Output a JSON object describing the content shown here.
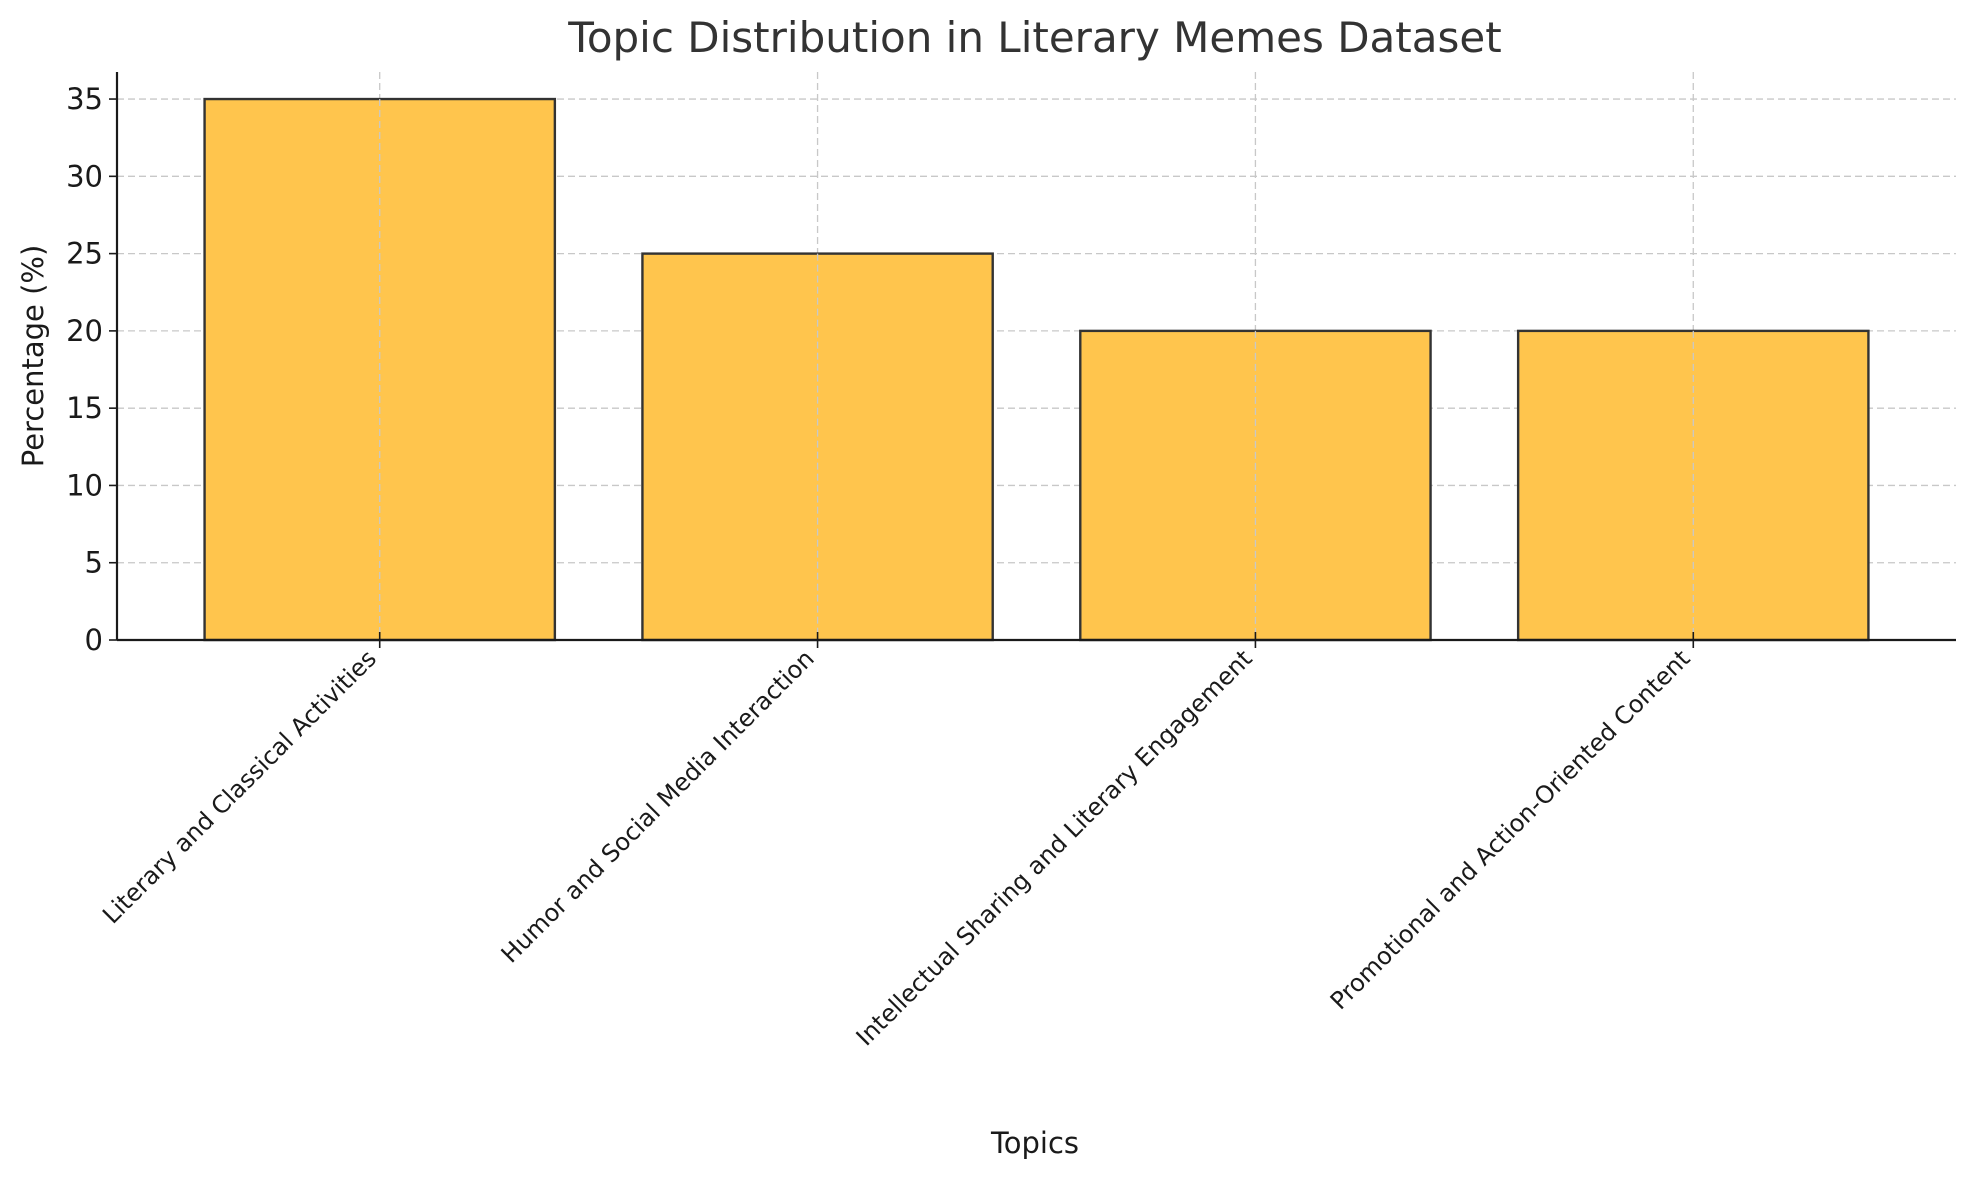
{
  "chart_data": {
    "type": "bar",
    "title": "Topic Distribution in Literary Memes Dataset",
    "xlabel": "Topics",
    "ylabel": "Percentage (%)",
    "categories": [
      "Literary and Classical Activities",
      "Humor and Social Media Interaction",
      "Intellectual Sharing and Literary Engagement",
      "Promotional and Action-Oriented Content"
    ],
    "values": [
      35,
      25,
      20,
      20
    ],
    "ylim": [
      0,
      36.75
    ],
    "yticks": [
      0,
      5,
      10,
      15,
      20,
      25,
      30,
      35
    ],
    "grid": true,
    "bar_color": "#FFC54D",
    "bar_edge_color": "#333333"
  }
}
